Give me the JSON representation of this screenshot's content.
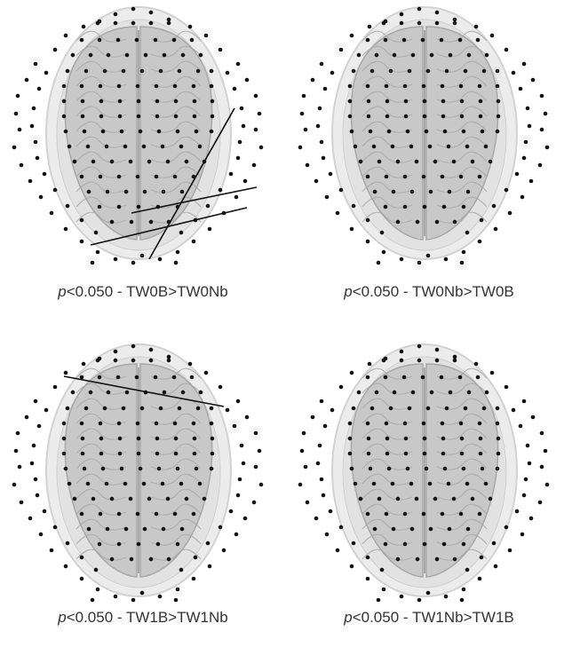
{
  "panels": [
    {
      "p_symbol": "p",
      "caption": "<0.050 - TW0B>TW0Nb",
      "connections": 3
    },
    {
      "p_symbol": "p",
      "caption": "<0.050 - TW0Nb>TW0B",
      "connections": 0
    },
    {
      "p_symbol": "p",
      "caption": "<0.050 - TW1B>TW1Nb",
      "connections": 1
    },
    {
      "p_symbol": "p",
      "caption": "<0.050 - TW1Nb>TW1B",
      "connections": 0
    }
  ]
}
